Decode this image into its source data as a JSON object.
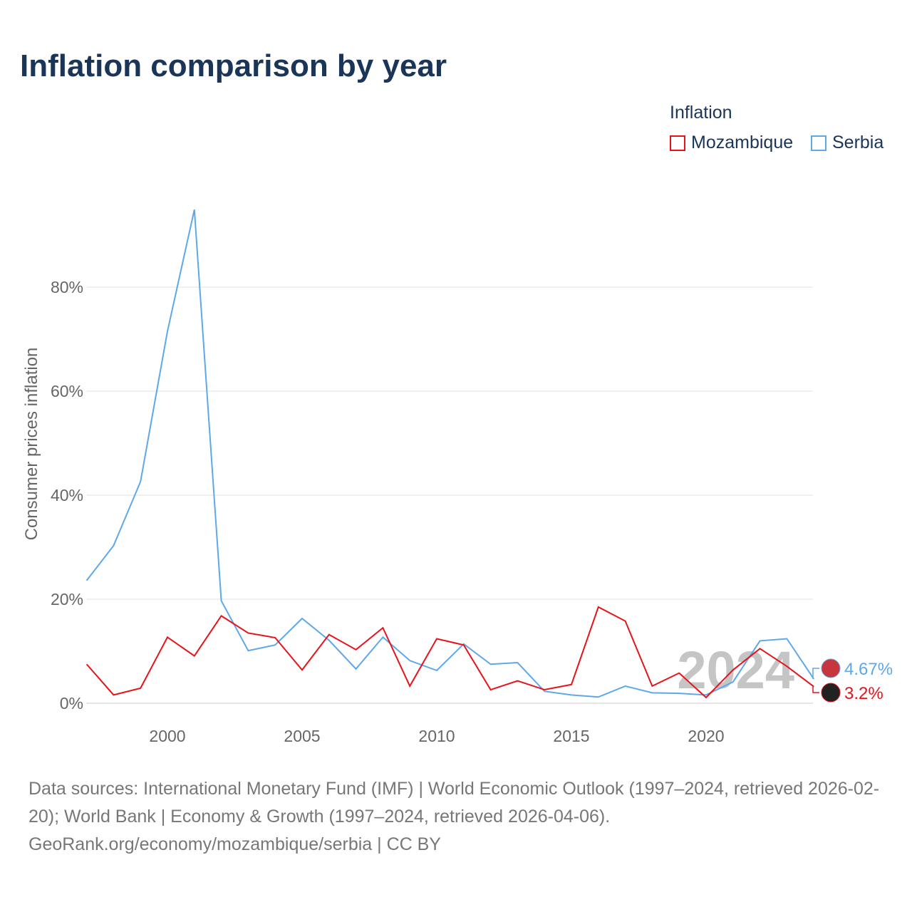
{
  "title": "Inflation comparison by year",
  "legend": {
    "title": "Inflation",
    "items": [
      {
        "label": "Mozambique",
        "color": "#e8121a"
      },
      {
        "label": "Serbia",
        "color": "#5ea8ea"
      }
    ]
  },
  "watermark_year": "2024",
  "source_text": "Data sources: International Monetary Fund (IMF) | World Economic Outlook (1997–2024, retrieved 2026-02-20); World Bank | Economy & Growth (1997–2024, retrieved 2026-04-06).",
  "source_link": "GeoRank.org/economy/mozambique/serbia | CC BY",
  "chart_data": {
    "type": "line",
    "title": "Inflation comparison by year",
    "ylabel": "Consumer prices inflation",
    "xlabel": "",
    "ylim": [
      0,
      100
    ],
    "xlim": [
      1997,
      2024
    ],
    "yticks": [
      {
        "v": 0,
        "label": "0%"
      },
      {
        "v": 20,
        "label": "20%"
      },
      {
        "v": 40,
        "label": "40%"
      },
      {
        "v": 60,
        "label": "60%"
      },
      {
        "v": 80,
        "label": "80%"
      }
    ],
    "xticks": [
      2000,
      2005,
      2010,
      2015,
      2020
    ],
    "x": [
      1997,
      1998,
      1999,
      2000,
      2001,
      2002,
      2003,
      2004,
      2005,
      2006,
      2007,
      2008,
      2009,
      2010,
      2011,
      2012,
      2013,
      2014,
      2015,
      2016,
      2017,
      2018,
      2019,
      2020,
      2021,
      2022,
      2023,
      2024
    ],
    "series": [
      {
        "name": "Serbia",
        "color": "#5ea8ea",
        "end_label": "4.67%",
        "values": [
          23.6,
          30.3,
          42.6,
          71.5,
          94.9,
          19.7,
          10.1,
          11.2,
          16.3,
          12.1,
          6.6,
          12.7,
          8.2,
          6.3,
          11.4,
          7.5,
          7.8,
          2.3,
          1.6,
          1.2,
          3.3,
          2.0,
          1.9,
          1.6,
          4.1,
          12.0,
          12.4,
          4.67
        ]
      },
      {
        "name": "Mozambique",
        "color": "#e8121a",
        "end_label": "3.2%",
        "values": [
          7.5,
          1.6,
          2.9,
          12.7,
          9.1,
          16.8,
          13.5,
          12.6,
          6.4,
          13.2,
          10.3,
          14.5,
          3.3,
          12.4,
          11.2,
          2.6,
          4.3,
          2.6,
          3.6,
          18.5,
          15.8,
          3.3,
          5.8,
          1.1,
          6.4,
          10.5,
          7.1,
          3.2
        ]
      }
    ]
  }
}
